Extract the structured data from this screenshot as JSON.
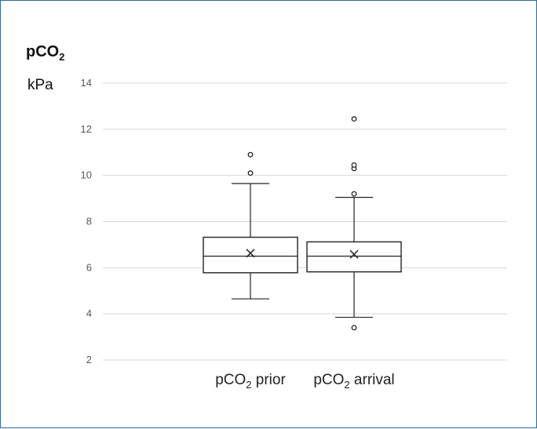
{
  "chart_data": {
    "type": "box",
    "title": "pCO",
    "title_subscript": "2",
    "ylabel": "kPa",
    "ylim": [
      2,
      14
    ],
    "yticks": [
      2,
      4,
      6,
      8,
      10,
      12,
      14
    ],
    "grid": true,
    "categories": [
      {
        "main": "pCO",
        "sub": "2",
        "rest": " prior"
      },
      {
        "main": "pCO",
        "sub": "2",
        "rest": " arrival"
      }
    ],
    "boxes": [
      {
        "whisker_low": 4.65,
        "q1": 5.78,
        "median": 6.5,
        "q3": 7.32,
        "whisker_high": 9.65,
        "mean": 6.63,
        "outliers": [
          10.1,
          10.9
        ]
      },
      {
        "whisker_low": 3.85,
        "q1": 5.82,
        "median": 6.5,
        "q3": 7.12,
        "whisker_high": 9.05,
        "mean": 6.58,
        "outliers": [
          3.4,
          9.2,
          10.3,
          10.45,
          12.45
        ]
      }
    ],
    "colors": {
      "grid": "#d9d9d9",
      "box": "#222222",
      "tick": "#595959"
    }
  }
}
